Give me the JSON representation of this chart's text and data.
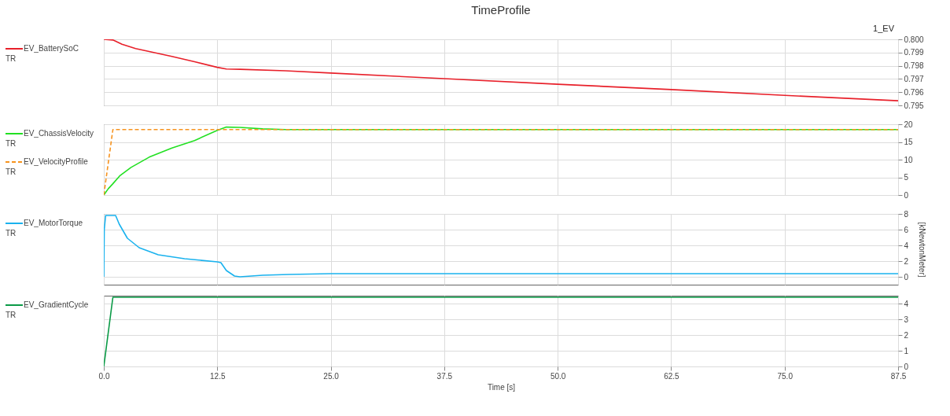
{
  "chart_data": [
    {
      "type": "line",
      "title": "TimeProfile",
      "legend": "left",
      "grid": true,
      "tick_labels": "y",
      "xlim": [
        0,
        87.5
      ],
      "xticks": [
        0,
        12.5,
        25,
        37.5,
        50,
        62.5,
        75,
        87.5
      ],
      "ylim": [
        0.795,
        0.8
      ],
      "yticks": [
        {
          "value": 0.795,
          "label": "0.795"
        },
        {
          "value": 0.796,
          "label": "0.796"
        },
        {
          "value": 0.797,
          "label": "0.797"
        },
        {
          "value": 0.798,
          "label": "0.798"
        },
        {
          "value": 0.799,
          "label": "0.799"
        },
        {
          "value": 0.8,
          "label": "0.800"
        }
      ],
      "annotations": [
        "TR",
        "1_EV"
      ],
      "series": [
        {
          "name": "EV_BatterySoC",
          "color": "#e8202a",
          "line_style": "solid",
          "x": [
            0,
            1,
            2,
            3.5,
            5,
            7.5,
            10,
            12.5,
            13.5,
            15,
            20,
            25,
            37.5,
            50,
            62.5,
            75,
            87.5
          ],
          "values": [
            0.8,
            0.79995,
            0.79963,
            0.7993,
            0.79908,
            0.7987,
            0.7983,
            0.79788,
            0.79775,
            0.79773,
            0.79762,
            0.79745,
            0.79702,
            0.7966,
            0.7962,
            0.79576,
            0.79535
          ]
        }
      ]
    },
    {
      "type": "line",
      "legend": "left",
      "grid": true,
      "tick_labels": "y",
      "xlim": [
        0,
        87.5
      ],
      "xticks": [
        0,
        12.5,
        25,
        37.5,
        50,
        62.5,
        75,
        87.5
      ],
      "ylim": [
        0,
        20
      ],
      "yticks": [
        0,
        5,
        10,
        15,
        20
      ],
      "annotations": [
        "TR",
        "TR"
      ],
      "series": [
        {
          "name": "EV_ChassisVelocity",
          "color": "#22e022",
          "line_style": "solid",
          "x": [
            0,
            0.5,
            1,
            1.75,
            3,
            5,
            7.5,
            10,
            12.5,
            13.5,
            15,
            17.5,
            20,
            87.5
          ],
          "values": [
            0,
            1.8,
            3.2,
            5.4,
            7.8,
            10.7,
            13.3,
            15.4,
            18.3,
            19.2,
            19.1,
            18.7,
            18.5,
            18.5
          ]
        },
        {
          "name": "EV_VelocityProfile",
          "color": "#f7931e",
          "line_style": "dashed",
          "x": [
            0,
            1,
            87.5
          ],
          "values": [
            0,
            18.5,
            18.5
          ]
        }
      ]
    },
    {
      "type": "line",
      "legend": "left",
      "grid": true,
      "tick_labels": "y",
      "ylabel": "[kNewtonMeter]",
      "xlim": [
        0,
        87.5
      ],
      "xticks": [
        0,
        12.5,
        25,
        37.5,
        50,
        62.5,
        75,
        87.5
      ],
      "ylim": [
        -1,
        8
      ],
      "yticks": [
        0,
        2,
        4,
        6,
        8
      ],
      "annotations": [
        "TR"
      ],
      "series": [
        {
          "name": "EV_MotorTorque",
          "color": "#1ab2ee",
          "line_style": "solid",
          "x": [
            0,
            0.05,
            0.2,
            1.3,
            1.7,
            2.6,
            3.9,
            6,
            8.9,
            12.5,
            12.9,
            13.5,
            14.4,
            15,
            17.5,
            20.4,
            25,
            87.5
          ],
          "values": [
            0,
            6,
            7.8,
            7.8,
            6.7,
            4.9,
            3.7,
            2.8,
            2.3,
            1.9,
            1.8,
            0.8,
            0.1,
            0,
            0.2,
            0.3,
            0.4,
            0.4
          ]
        }
      ]
    },
    {
      "type": "line",
      "legend": "left",
      "grid": true,
      "xlabel": "Time [s]",
      "xlim": [
        0,
        87.5
      ],
      "xticks": [
        {
          "value": 0,
          "label": "0.0"
        },
        12.5,
        {
          "value": 25,
          "label": "25.0"
        },
        37.5,
        {
          "value": 50,
          "label": "50.0"
        },
        62.5,
        {
          "value": 75,
          "label": "75.0"
        },
        87.5
      ],
      "ylim": [
        0,
        4.5
      ],
      "yticks": [
        0,
        1,
        2,
        3,
        4
      ],
      "annotations": [
        "TR"
      ],
      "series": [
        {
          "name": "EV_GradientCycle",
          "color": "#0a9a46",
          "line_style": "solid",
          "x": [
            0,
            1,
            87.5
          ],
          "values": [
            0,
            4.4,
            4.4
          ]
        }
      ]
    }
  ]
}
